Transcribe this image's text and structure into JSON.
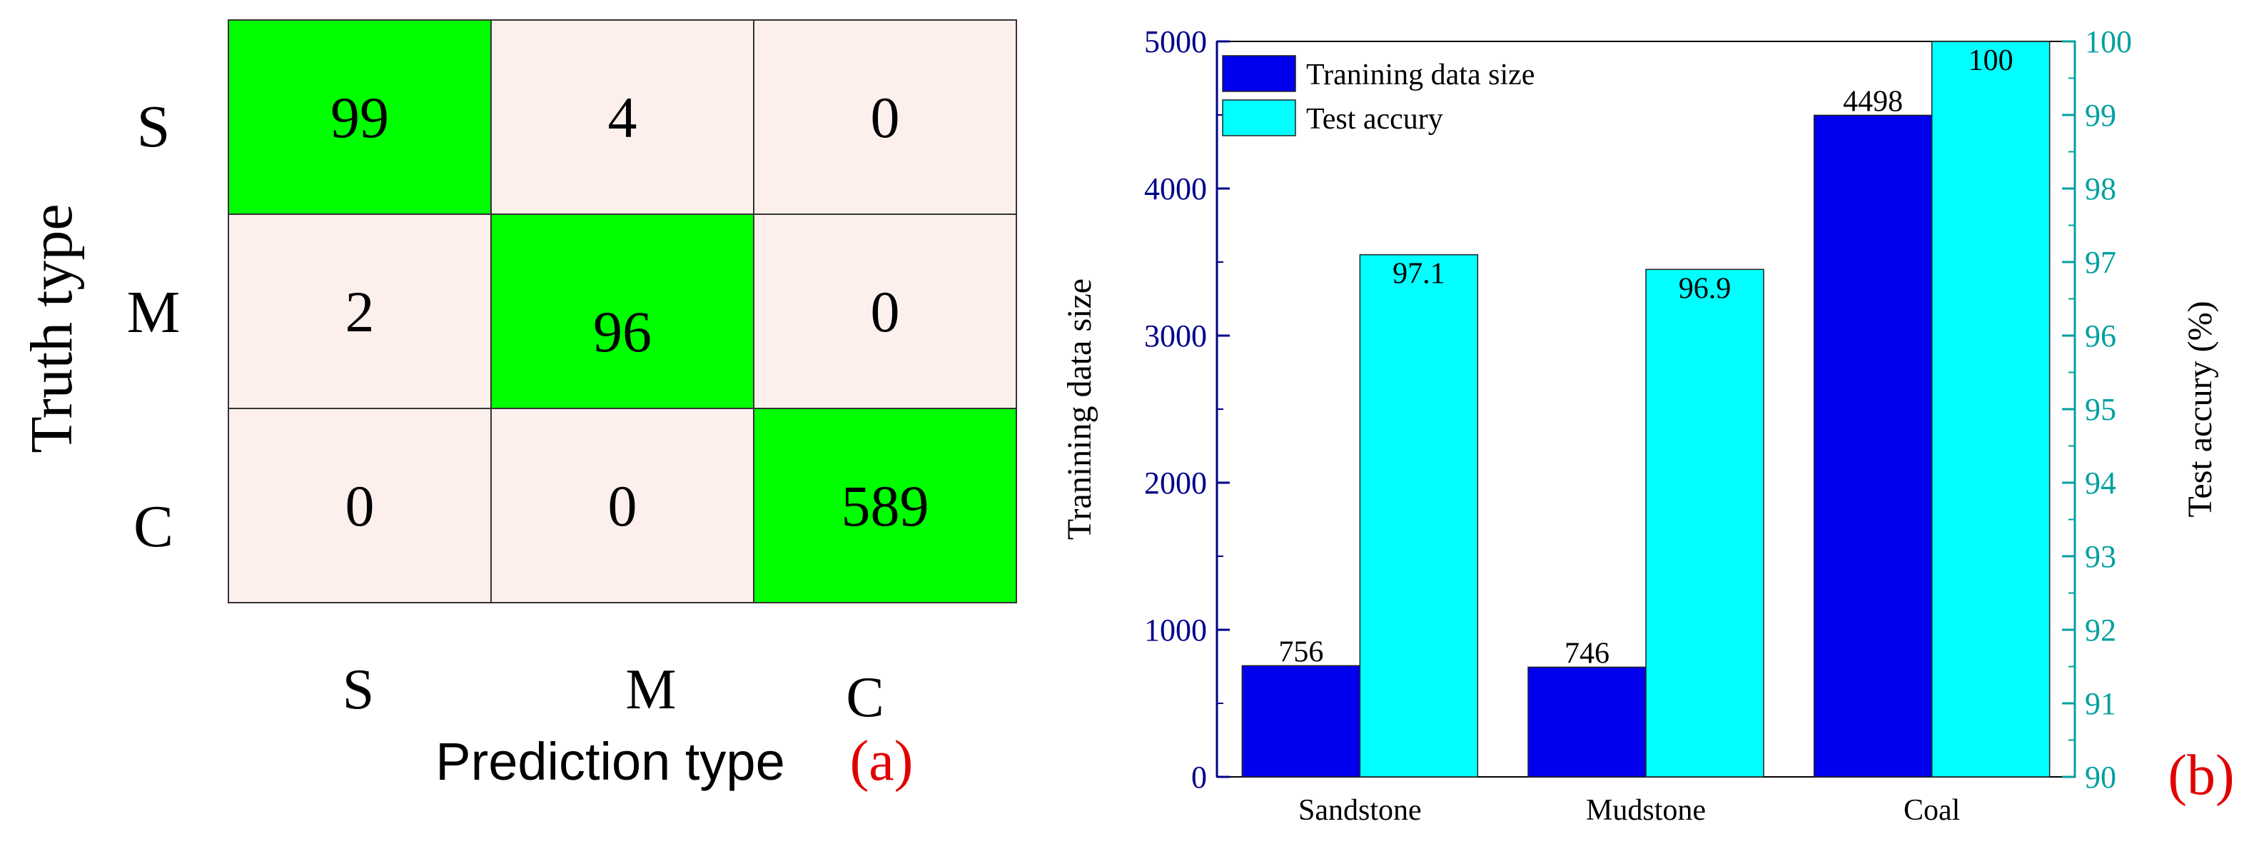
{
  "chart_data": [
    {
      "type": "heatmap",
      "panel_label": "(a)",
      "xlabel": "Prediction type",
      "ylabel": "Truth type",
      "row_labels": [
        "S",
        "M",
        "C"
      ],
      "col_labels": [
        "S",
        "M",
        "C"
      ],
      "matrix": [
        [
          "99",
          "4",
          "0"
        ],
        [
          "2",
          "96",
          "0"
        ],
        [
          "0",
          "0",
          "589"
        ]
      ],
      "diagonal_color": "#00ff00",
      "off_diagonal_color": "#fdf0ec"
    },
    {
      "type": "bar",
      "panel_label": "(b)",
      "categories": [
        "Sandstone",
        "Mudstone",
        "Coal"
      ],
      "series": [
        {
          "name": "Tranining data size",
          "axis": "left",
          "values": [
            756,
            746,
            4498
          ],
          "labels": [
            "756",
            "746",
            "4498"
          ],
          "color": "#0000ee"
        },
        {
          "name": "Test accury",
          "axis": "right",
          "values": [
            97.1,
            96.9,
            100
          ],
          "labels": [
            "97.1",
            "96.9",
            "100"
          ],
          "color": "#00ffff"
        }
      ],
      "ylabel_left": "Tranining data size",
      "ylabel_right": "Test accury (%)",
      "ylim_left": [
        0,
        5000
      ],
      "ylim_right": [
        90,
        100
      ],
      "yticks_left": [
        "0",
        "1000",
        "2000",
        "3000",
        "4000",
        "5000"
      ],
      "yticks_right": [
        "90",
        "91",
        "92",
        "93",
        "94",
        "95",
        "96",
        "97",
        "98",
        "99",
        "100"
      ],
      "left_axis_color": "#00008b",
      "right_axis_color": "#00a0a0",
      "panel_label_color": "#e00000",
      "legend_position": "top-left"
    }
  ]
}
